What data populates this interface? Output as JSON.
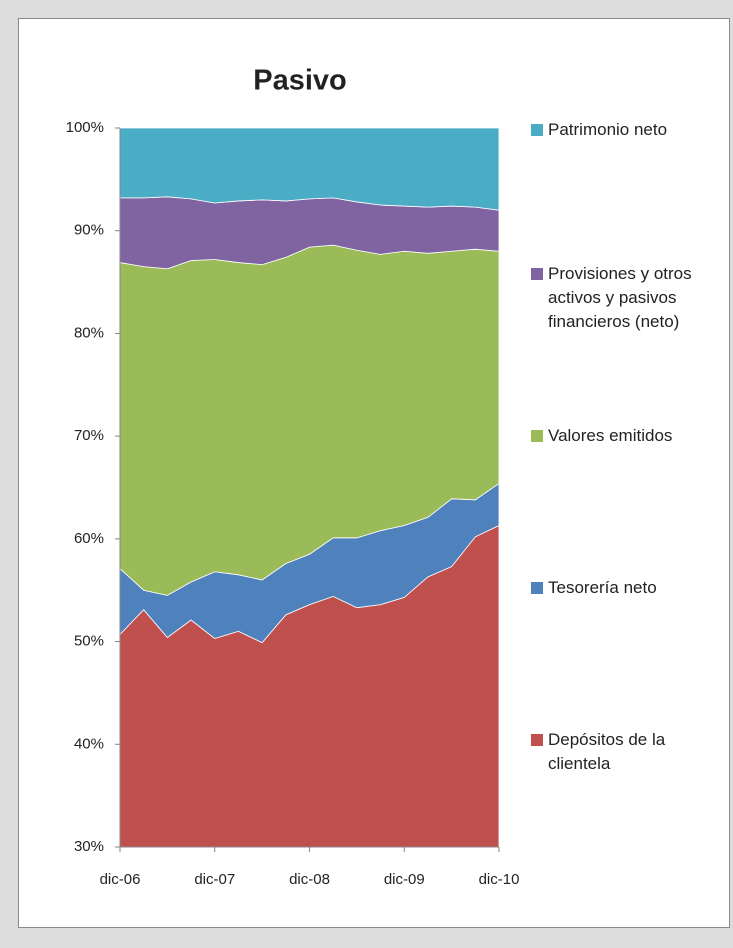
{
  "chart_data": {
    "type": "stacked_area_percent",
    "title": "Pasivo",
    "categories": [
      "dic-06",
      null,
      null,
      null,
      "dic-07",
      null,
      null,
      null,
      "dic-08",
      null,
      null,
      null,
      "dic-09",
      null,
      null,
      null,
      "dic-10"
    ],
    "series": [
      {
        "name": "Depósitos de la clientela",
        "color": "#c0504d",
        "values": [
          50.7,
          53.1,
          50.4,
          52.1,
          50.3,
          51.0,
          49.9,
          52.6,
          53.6,
          54.4,
          53.3,
          53.6,
          54.3,
          56.3,
          57.3,
          60.2,
          61.3
        ]
      },
      {
        "name": "Tesorería neto",
        "color": "#4f81bd",
        "values": [
          6.4,
          1.9,
          4.1,
          3.7,
          6.5,
          5.5,
          6.1,
          5.0,
          4.9,
          5.7,
          6.8,
          7.2,
          7.0,
          5.8,
          6.6,
          3.6,
          4.1
        ]
      },
      {
        "name": "Valores emitidos",
        "color": "#9bbb59",
        "values": [
          29.8,
          31.5,
          31.8,
          31.3,
          30.4,
          30.4,
          30.7,
          29.8,
          29.9,
          28.5,
          28.0,
          26.9,
          26.7,
          25.7,
          24.1,
          24.4,
          22.6
        ]
      },
      {
        "name": "Provisiones y otros activos y pasivos financieros (neto)",
        "color": "#8064a2",
        "values": [
          6.3,
          6.7,
          7.0,
          6.0,
          5.5,
          6.0,
          6.3,
          5.5,
          4.7,
          4.6,
          4.7,
          4.8,
          4.4,
          4.5,
          4.4,
          4.1,
          4.0
        ]
      },
      {
        "name": "Patrimonio neto",
        "color": "#4bacc6",
        "values": [
          6.8,
          6.8,
          6.7,
          6.9,
          7.3,
          7.1,
          7.0,
          7.1,
          6.9,
          6.8,
          7.2,
          7.5,
          7.6,
          7.7,
          7.6,
          7.7,
          8.0
        ]
      }
    ],
    "ylim": [
      30,
      100
    ],
    "yticks": [
      {
        "value": 30,
        "label": "30%"
      },
      {
        "value": 40,
        "label": "40%"
      },
      {
        "value": 50,
        "label": "50%"
      },
      {
        "value": 60,
        "label": "60%"
      },
      {
        "value": 70,
        "label": "70%"
      },
      {
        "value": 80,
        "label": "80%"
      },
      {
        "value": 90,
        "label": "90%"
      },
      {
        "value": 100,
        "label": "100%"
      }
    ],
    "grid": false,
    "legend": "right"
  }
}
